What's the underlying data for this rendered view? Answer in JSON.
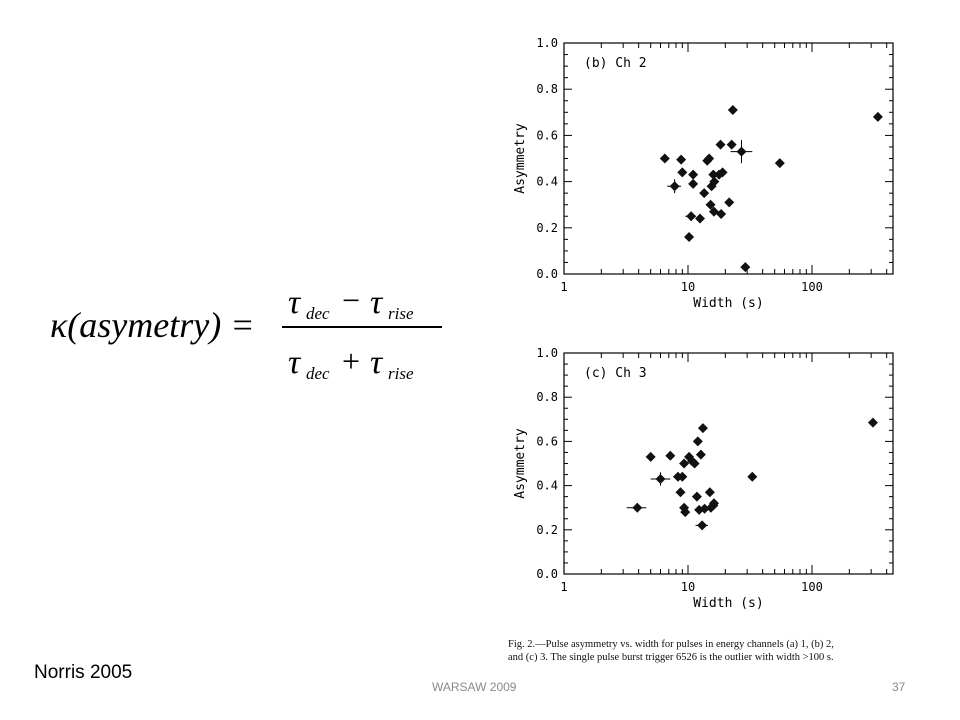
{
  "formula": {
    "lhs": "κ(asymetry) =",
    "numerator_a": "τ",
    "numerator_a_sub": "dec",
    "numerator_op": "−",
    "numerator_b": "τ",
    "numerator_b_sub": "rise",
    "denominator_a": "τ",
    "denominator_a_sub": "dec",
    "denominator_op": "+",
    "denominator_b": "τ",
    "denominator_b_sub": "rise"
  },
  "caption": {
    "line1": "Fig. 2.—Pulse asymmetry vs. width for pulses in energy channels (a) 1, (b) 2,",
    "line2": "and (c) 3. The single pulse burst trigger 6526 is the outlier with width >100 s."
  },
  "citation": "Norris 2005",
  "footer": {
    "center": "WARSAW 2009",
    "page": "37"
  },
  "chart_data": [
    {
      "type": "scatter",
      "title": "(b) Ch 2",
      "xlabel": "Width (s)",
      "ylabel": "Asymmetry",
      "x_scale": "log",
      "xlim": [
        1,
        450
      ],
      "ylim": [
        0.0,
        1.0
      ],
      "x_ticks": [
        "1",
        "10",
        "100"
      ],
      "y_ticks": [
        "0.0",
        "0.2",
        "0.4",
        "0.6",
        "0.8",
        "1.0"
      ],
      "marker": "diamond",
      "points": [
        {
          "x": 6.5,
          "y": 0.5
        },
        {
          "x": 8.8,
          "y": 0.495
        },
        {
          "x": 9.0,
          "y": 0.44
        },
        {
          "x": 11.0,
          "y": 0.43
        },
        {
          "x": 11.0,
          "y": 0.39
        },
        {
          "x": 7.8,
          "y": 0.38
        },
        {
          "x": 10.6,
          "y": 0.25
        },
        {
          "x": 12.5,
          "y": 0.24
        },
        {
          "x": 10.2,
          "y": 0.16
        },
        {
          "x": 13.5,
          "y": 0.35
        },
        {
          "x": 14.3,
          "y": 0.49
        },
        {
          "x": 14.8,
          "y": 0.5
        },
        {
          "x": 16.0,
          "y": 0.43
        },
        {
          "x": 16.3,
          "y": 0.4
        },
        {
          "x": 15.5,
          "y": 0.38
        },
        {
          "x": 15.2,
          "y": 0.3
        },
        {
          "x": 16.2,
          "y": 0.27
        },
        {
          "x": 17.8,
          "y": 0.43
        },
        {
          "x": 19.0,
          "y": 0.44
        },
        {
          "x": 18.3,
          "y": 0.56
        },
        {
          "x": 18.5,
          "y": 0.26
        },
        {
          "x": 21.5,
          "y": 0.31
        },
        {
          "x": 22.5,
          "y": 0.56
        },
        {
          "x": 23.0,
          "y": 0.71
        },
        {
          "x": 27.0,
          "y": 0.53
        },
        {
          "x": 29.0,
          "y": 0.03
        },
        {
          "x": 55.0,
          "y": 0.48
        },
        {
          "x": 340.0,
          "y": 0.68
        }
      ],
      "error_bars": [
        {
          "x": 7.8,
          "y": 0.38,
          "dx": [
            6.8,
            8.8
          ],
          "dy": [
            0.35,
            0.41
          ]
        },
        {
          "x": 10.6,
          "y": 0.25,
          "dx": [
            9.5,
            11.6
          ],
          "dy": [
            0.23,
            0.27
          ]
        },
        {
          "x": 27.0,
          "y": 0.53,
          "dx": [
            22.0,
            33.0
          ],
          "dy": [
            0.48,
            0.58
          ]
        }
      ]
    },
    {
      "type": "scatter",
      "title": "(c) Ch 3",
      "xlabel": "Width (s)",
      "ylabel": "Asymmetry",
      "x_scale": "log",
      "xlim": [
        1,
        450
      ],
      "ylim": [
        0.0,
        1.0
      ],
      "x_ticks": [
        "1",
        "10",
        "100"
      ],
      "y_ticks": [
        "0.0",
        "0.2",
        "0.4",
        "0.6",
        "0.8",
        "1.0"
      ],
      "marker": "diamond",
      "points": [
        {
          "x": 3.9,
          "y": 0.3
        },
        {
          "x": 5.0,
          "y": 0.53
        },
        {
          "x": 6.0,
          "y": 0.43
        },
        {
          "x": 7.2,
          "y": 0.535
        },
        {
          "x": 8.3,
          "y": 0.44
        },
        {
          "x": 9.0,
          "y": 0.44
        },
        {
          "x": 8.7,
          "y": 0.37
        },
        {
          "x": 9.3,
          "y": 0.3
        },
        {
          "x": 9.5,
          "y": 0.28
        },
        {
          "x": 9.3,
          "y": 0.5
        },
        {
          "x": 10.2,
          "y": 0.53
        },
        {
          "x": 10.8,
          "y": 0.51
        },
        {
          "x": 11.3,
          "y": 0.5
        },
        {
          "x": 12.0,
          "y": 0.6
        },
        {
          "x": 12.7,
          "y": 0.54
        },
        {
          "x": 11.8,
          "y": 0.35
        },
        {
          "x": 12.3,
          "y": 0.29
        },
        {
          "x": 13.0,
          "y": 0.22
        },
        {
          "x": 13.6,
          "y": 0.295
        },
        {
          "x": 13.2,
          "y": 0.66
        },
        {
          "x": 15.0,
          "y": 0.37
        },
        {
          "x": 15.3,
          "y": 0.3
        },
        {
          "x": 16.2,
          "y": 0.32
        },
        {
          "x": 16.0,
          "y": 0.31
        },
        {
          "x": 33.0,
          "y": 0.44
        },
        {
          "x": 310.0,
          "y": 0.685
        }
      ],
      "error_bars": [
        {
          "x": 3.9,
          "y": 0.3,
          "dx": [
            3.2,
            4.6
          ],
          "dy": [
            0.28,
            0.32
          ]
        },
        {
          "x": 6.0,
          "y": 0.43,
          "dx": [
            5.0,
            7.2
          ],
          "dy": [
            0.4,
            0.46
          ]
        },
        {
          "x": 13.0,
          "y": 0.22,
          "dx": [
            11.5,
            14.5
          ],
          "dy": [
            0.205,
            0.235
          ]
        }
      ]
    }
  ]
}
